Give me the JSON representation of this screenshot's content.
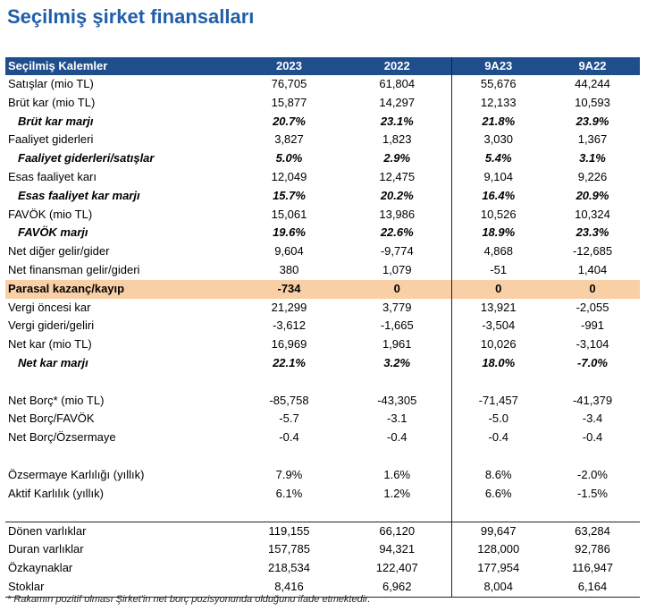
{
  "title": "Seçilmiş şirket finansalları",
  "table": {
    "headers": [
      "Seçilmiş Kalemler",
      "2023",
      "2022",
      "9A23",
      "9A22"
    ],
    "rows": [
      {
        "type": "normal",
        "label": "Satışlar (mio TL)",
        "values": [
          "76,705",
          "61,804",
          "55,676",
          "44,244"
        ]
      },
      {
        "type": "normal",
        "label": "Brüt kar (mio TL)",
        "values": [
          "15,877",
          "14,297",
          "12,133",
          "10,593"
        ]
      },
      {
        "type": "ratio",
        "label": "Brüt kar marjı",
        "values": [
          "20.7%",
          "23.1%",
          "21.8%",
          "23.9%"
        ]
      },
      {
        "type": "normal",
        "label": "Faaliyet giderleri",
        "values": [
          "3,827",
          "1,823",
          "3,030",
          "1,367"
        ]
      },
      {
        "type": "ratio",
        "label": "Faaliyet giderleri/satışlar",
        "values": [
          "5.0%",
          "2.9%",
          "5.4%",
          "3.1%"
        ]
      },
      {
        "type": "normal",
        "label": "Esas faaliyet karı",
        "values": [
          "12,049",
          "12,475",
          "9,104",
          "9,226"
        ]
      },
      {
        "type": "ratio",
        "label": "Esas faaliyet kar marjı",
        "values": [
          "15.7%",
          "20.2%",
          "16.4%",
          "20.9%"
        ]
      },
      {
        "type": "normal",
        "label": "FAVÖK (mio TL)",
        "values": [
          "15,061",
          "13,986",
          "10,526",
          "10,324"
        ]
      },
      {
        "type": "ratio",
        "label": "FAVÖK marjı",
        "values": [
          "19.6%",
          "22.6%",
          "18.9%",
          "23.3%"
        ]
      },
      {
        "type": "normal",
        "label": "Net diğer gelir/gider",
        "values": [
          "9,604",
          "-9,774",
          "4,868",
          "-12,685"
        ]
      },
      {
        "type": "normal",
        "label": "Net finansman gelir/gideri",
        "values": [
          "380",
          "1,079",
          "-51",
          "1,404"
        ]
      },
      {
        "type": "highlight",
        "label": "Parasal kazanç/kayıp",
        "values": [
          "-734",
          "0",
          "0",
          "0"
        ]
      },
      {
        "type": "normal",
        "label": "Vergi öncesi kar",
        "values": [
          "21,299",
          "3,779",
          "13,921",
          "-2,055"
        ]
      },
      {
        "type": "normal",
        "label": "Vergi gideri/geliri",
        "values": [
          "-3,612",
          "-1,665",
          "-3,504",
          "-991"
        ]
      },
      {
        "type": "normal",
        "label": "Net kar (mio TL)",
        "values": [
          "16,969",
          "1,961",
          "10,026",
          "-3,104"
        ]
      },
      {
        "type": "ratio",
        "label": "Net kar marjı",
        "values": [
          "22.1%",
          "3.2%",
          "18.0%",
          "-7.0%"
        ]
      },
      {
        "type": "blank",
        "label": "",
        "values": [
          "",
          "",
          "",
          ""
        ]
      },
      {
        "type": "normal",
        "label": "Net Borç* (mio TL)",
        "values": [
          "-85,758",
          "-43,305",
          "-71,457",
          "-41,379"
        ]
      },
      {
        "type": "normal",
        "label": "Net Borç/FAVÖK",
        "values": [
          "-5.7",
          "-3.1",
          "-5.0",
          "-3.4"
        ]
      },
      {
        "type": "normal",
        "label": "Net Borç/Özsermaye",
        "values": [
          "-0.4",
          "-0.4",
          "-0.4",
          "-0.4"
        ]
      },
      {
        "type": "blank",
        "label": "",
        "values": [
          "",
          "",
          "",
          ""
        ]
      },
      {
        "type": "normal",
        "label": "Özsermaye Karlılığı (yıllık)",
        "values": [
          "7.9%",
          "1.6%",
          "8.6%",
          "-2.0%"
        ]
      },
      {
        "type": "normal",
        "label": "Aktif Karlılık (yıllık)",
        "values": [
          "6.1%",
          "1.2%",
          "6.6%",
          "-1.5%"
        ]
      },
      {
        "type": "blank",
        "label": "",
        "values": [
          "",
          "",
          "",
          ""
        ]
      },
      {
        "type": "sep",
        "label": "Dönen varlıklar",
        "values": [
          "119,155",
          "66,120",
          "99,647",
          "63,284"
        ]
      },
      {
        "type": "normal",
        "label": "Duran varlıklar",
        "values": [
          "157,785",
          "94,321",
          "128,000",
          "92,786"
        ]
      },
      {
        "type": "normal",
        "label": "Özkaynaklar",
        "values": [
          "218,534",
          "122,407",
          "177,954",
          "116,947"
        ]
      },
      {
        "type": "last",
        "label": "Stoklar",
        "values": [
          "8,416",
          "6,962",
          "8,004",
          "6,164"
        ]
      }
    ]
  },
  "footnote": "* Rakamın pozitif olması Şirket'in net borç pozisyonunda olduğunu ifade etmektedir."
}
